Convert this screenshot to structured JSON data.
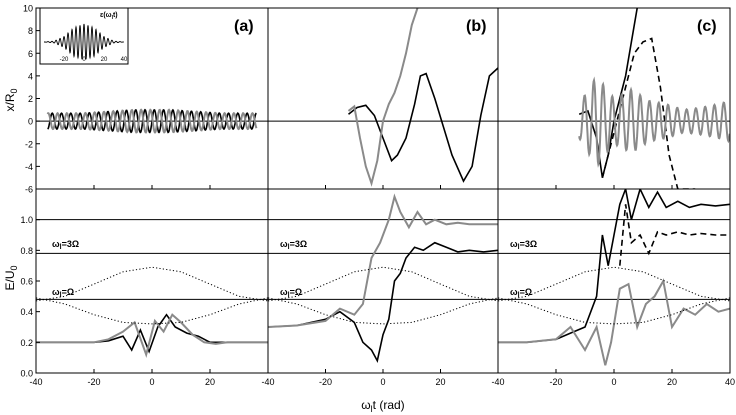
{
  "figure": {
    "panel_labels": [
      "(a)",
      "(b)",
      "(c)"
    ],
    "top_ylabel": "x/R",
    "top_ylabel_sub": "0",
    "bottom_ylabel": "E/U",
    "bottom_ylabel_sub": "0",
    "xlabel": "ω",
    "xlabel_sub": "l",
    "xlabel_rest": "t (rad)",
    "inset_label": "ε(ω",
    "inset_label_sub": "l",
    "inset_label_rest": "t)",
    "level_label_3": "ω",
    "level_label_3_sub": "l",
    "level_label_3_rest": "=3Ω",
    "level_label_1": "ω",
    "level_label_1_sub": "l",
    "level_label_1_rest": "=Ω",
    "colors": {
      "black_curve": "#000000",
      "gray_curve": "#8a8a8a",
      "axis": "#000000",
      "reference_line": "#000000"
    }
  },
  "chart_data": [
    {
      "type": "line",
      "panel": "(a)",
      "row": "top",
      "xlim": [
        -40,
        40
      ],
      "ylim": [
        -6,
        10
      ],
      "xticks": [
        -40,
        -20,
        0,
        20
      ],
      "yticks": [
        -6,
        -4,
        -2,
        0,
        2,
        4,
        6,
        8,
        10
      ],
      "reference_lines": [
        0
      ],
      "series": [
        {
          "color": "black",
          "style": "solid",
          "envelope": "oscillation",
          "x": [
            -36,
            -30,
            -24,
            -18,
            -12,
            -6,
            0,
            6,
            12,
            18,
            24,
            30,
            36
          ],
          "y": [
            0.7,
            0.7,
            0.7,
            0.8,
            0.9,
            1.0,
            1.0,
            1.0,
            0.9,
            0.8,
            0.7,
            0.7,
            0.7
          ]
        },
        {
          "color": "gray",
          "style": "solid",
          "envelope": "oscillation",
          "x": [
            -36,
            -30,
            -24,
            -18,
            -12,
            -6,
            0,
            6,
            12,
            18,
            24,
            30,
            36
          ],
          "y": [
            0.7,
            0.7,
            0.7,
            0.8,
            0.9,
            1.0,
            1.0,
            1.0,
            0.9,
            0.8,
            0.7,
            0.7,
            0.7
          ]
        }
      ]
    },
    {
      "type": "line",
      "panel": "(b)",
      "row": "top",
      "xlim": [
        -40,
        40
      ],
      "ylim": [
        -6,
        10
      ],
      "xticks": [
        -40,
        -20,
        0,
        20
      ],
      "reference_lines": [
        0
      ],
      "series": [
        {
          "color": "black",
          "style": "solid",
          "x": [
            -12,
            -9,
            -6,
            -3,
            0,
            3,
            5,
            8,
            11,
            13,
            15,
            18,
            21,
            24,
            28,
            31,
            34,
            37,
            40
          ],
          "y": [
            0.6,
            1.2,
            1.4,
            0.5,
            -1.5,
            -3.5,
            -3.0,
            -1.5,
            1.5,
            4.0,
            4.2,
            2.0,
            -0.5,
            -3.0,
            -5.3,
            -4.0,
            0.5,
            4.0,
            4.7
          ]
        },
        {
          "color": "gray",
          "style": "solid",
          "x": [
            -12,
            -10,
            -8,
            -6,
            -4,
            -2,
            0,
            2,
            4,
            6,
            8,
            10,
            12
          ],
          "y": [
            0.9,
            1.3,
            -1.5,
            -4.0,
            -5.5,
            -3.5,
            0.0,
            1.5,
            2.5,
            4.0,
            6.0,
            8.5,
            10.0
          ]
        }
      ]
    },
    {
      "type": "line",
      "panel": "(c)",
      "row": "top",
      "xlim": [
        -40,
        40
      ],
      "ylim": [
        -6,
        10
      ],
      "xticks": [
        -40,
        -20,
        0,
        20,
        40
      ],
      "reference_lines": [
        0
      ],
      "series": [
        {
          "color": "black",
          "style": "solid",
          "x": [
            -12,
            -9,
            -6,
            -4,
            -2,
            0,
            2,
            4,
            6,
            8
          ],
          "y": [
            0.6,
            0.9,
            -1.5,
            -5.0,
            -3.0,
            0.0,
            2.0,
            4.0,
            7.0,
            10.0
          ]
        },
        {
          "color": "black",
          "style": "dashed",
          "x": [
            -4,
            0,
            4,
            7,
            10,
            13,
            16,
            19,
            22,
            25,
            28
          ],
          "y": [
            -5.0,
            -1.0,
            3.0,
            6.0,
            7.0,
            7.3,
            3.0,
            -3.0,
            -6.0,
            -6.0,
            -6.0
          ]
        },
        {
          "color": "gray",
          "style": "solid",
          "envelope": "oscillation",
          "x": [
            -12,
            -6,
            0,
            6,
            12,
            18,
            24,
            30,
            36,
            40
          ],
          "y": [
            1.5,
            4.0,
            2.0,
            2.8,
            1.8,
            1.5,
            1.0,
            1.2,
            1.5,
            1.8
          ]
        }
      ]
    },
    {
      "type": "line",
      "panel": "(a)",
      "row": "bottom",
      "xlim": [
        -40,
        40
      ],
      "ylim": [
        0.0,
        1.2
      ],
      "xticks": [
        -40,
        -20,
        0,
        20
      ],
      "yticks": [
        0.0,
        0.2,
        0.4,
        0.6,
        0.8,
        1.0
      ],
      "reference_lines": [
        1.0,
        0.78,
        0.48
      ],
      "series": [
        {
          "color": "black",
          "style": "solid",
          "x": [
            -40,
            -30,
            -20,
            -15,
            -10,
            -7,
            -4,
            -1,
            2,
            5,
            8,
            12,
            16,
            20,
            25,
            30,
            40
          ],
          "y": [
            0.2,
            0.2,
            0.2,
            0.21,
            0.24,
            0.15,
            0.28,
            0.14,
            0.3,
            0.38,
            0.3,
            0.26,
            0.24,
            0.2,
            0.2,
            0.2,
            0.2
          ]
        },
        {
          "color": "gray",
          "style": "solid",
          "x": [
            -40,
            -30,
            -20,
            -15,
            -10,
            -6,
            -2,
            1,
            4,
            7,
            10,
            14,
            18,
            22,
            26,
            30,
            40
          ],
          "y": [
            0.2,
            0.2,
            0.2,
            0.22,
            0.27,
            0.33,
            0.12,
            0.34,
            0.27,
            0.38,
            0.33,
            0.25,
            0.2,
            0.19,
            0.2,
            0.2,
            0.2
          ]
        },
        {
          "color": "black",
          "style": "dotted",
          "x": [
            -40,
            -30,
            -20,
            -10,
            0,
            10,
            20,
            30,
            40
          ],
          "y": [
            0.47,
            0.5,
            0.58,
            0.66,
            0.69,
            0.66,
            0.58,
            0.5,
            0.47
          ]
        },
        {
          "color": "black",
          "style": "dotted",
          "x": [
            -40,
            -30,
            -20,
            -10,
            0,
            10,
            20,
            30,
            40
          ],
          "y": [
            0.49,
            0.45,
            0.38,
            0.33,
            0.32,
            0.33,
            0.38,
            0.45,
            0.49
          ]
        }
      ]
    },
    {
      "type": "line",
      "panel": "(b)",
      "row": "bottom",
      "xlim": [
        -40,
        40
      ],
      "ylim": [
        0.0,
        1.2
      ],
      "xticks": [
        -40,
        -20,
        0,
        20
      ],
      "reference_lines": [
        1.0,
        0.78,
        0.48
      ],
      "series": [
        {
          "color": "black",
          "style": "solid",
          "x": [
            -40,
            -30,
            -20,
            -15,
            -10,
            -7,
            -4,
            -2,
            0,
            2,
            4,
            6,
            8,
            11,
            14,
            18,
            22,
            26,
            30,
            35,
            40
          ],
          "y": [
            0.3,
            0.31,
            0.35,
            0.4,
            0.33,
            0.2,
            0.15,
            0.08,
            0.25,
            0.35,
            0.6,
            0.65,
            0.75,
            0.82,
            0.8,
            0.85,
            0.82,
            0.79,
            0.8,
            0.79,
            0.8
          ]
        },
        {
          "color": "gray",
          "style": "solid",
          "x": [
            -40,
            -30,
            -20,
            -15,
            -10,
            -7,
            -4,
            -1,
            2,
            4,
            6,
            9,
            12,
            15,
            18,
            22,
            26,
            30,
            35,
            40
          ],
          "y": [
            0.3,
            0.31,
            0.34,
            0.42,
            0.38,
            0.45,
            0.75,
            0.85,
            1.0,
            1.15,
            1.05,
            0.95,
            1.05,
            0.97,
            1.0,
            0.97,
            0.98,
            0.97,
            0.97,
            0.97
          ]
        },
        {
          "color": "black",
          "style": "dotted",
          "x": [
            -40,
            -30,
            -20,
            -10,
            0,
            10,
            20,
            30,
            40
          ],
          "y": [
            0.47,
            0.5,
            0.58,
            0.66,
            0.69,
            0.66,
            0.58,
            0.5,
            0.47
          ]
        },
        {
          "color": "black",
          "style": "dotted",
          "x": [
            -40,
            -30,
            -20,
            -10,
            0,
            10,
            20,
            30,
            40
          ],
          "y": [
            0.49,
            0.45,
            0.38,
            0.33,
            0.32,
            0.33,
            0.38,
            0.45,
            0.49
          ]
        }
      ]
    },
    {
      "type": "line",
      "panel": "(c)",
      "row": "bottom",
      "xlim": [
        -40,
        40
      ],
      "ylim": [
        0.0,
        1.2
      ],
      "xticks": [
        -40,
        -20,
        0,
        20,
        40
      ],
      "reference_lines": [
        1.0,
        0.78,
        0.48
      ],
      "series": [
        {
          "color": "black",
          "style": "solid",
          "x": [
            -40,
            -30,
            -20,
            -15,
            -10,
            -6,
            -4,
            -2,
            0,
            2,
            4,
            6,
            9,
            12,
            15,
            18,
            22,
            26,
            30,
            35,
            40
          ],
          "y": [
            0.2,
            0.2,
            0.22,
            0.26,
            0.3,
            0.5,
            0.9,
            0.7,
            0.9,
            1.1,
            1.2,
            1.0,
            1.2,
            1.08,
            1.18,
            1.08,
            1.12,
            1.08,
            1.1,
            1.09,
            1.1
          ]
        },
        {
          "color": "black",
          "style": "dashed",
          "x": [
            2,
            4,
            6,
            9,
            12,
            15,
            18,
            22,
            26,
            30,
            35,
            40
          ],
          "y": [
            0.7,
            1.1,
            0.85,
            0.9,
            0.78,
            0.92,
            0.9,
            0.92,
            0.9,
            0.91,
            0.9,
            0.9
          ]
        },
        {
          "color": "gray",
          "style": "solid",
          "x": [
            -40,
            -30,
            -20,
            -15,
            -10,
            -6,
            -3,
            -1,
            2,
            5,
            8,
            11,
            14,
            17,
            20,
            24,
            28,
            32,
            36,
            40
          ],
          "y": [
            0.2,
            0.2,
            0.22,
            0.3,
            0.15,
            0.3,
            0.05,
            0.2,
            0.55,
            0.58,
            0.3,
            0.45,
            0.5,
            0.6,
            0.3,
            0.42,
            0.38,
            0.45,
            0.4,
            0.42
          ]
        },
        {
          "color": "black",
          "style": "dotted",
          "x": [
            -40,
            -30,
            -20,
            -10,
            0,
            10,
            20,
            30,
            40
          ],
          "y": [
            0.47,
            0.5,
            0.58,
            0.66,
            0.69,
            0.66,
            0.58,
            0.5,
            0.47
          ]
        },
        {
          "color": "black",
          "style": "dotted",
          "x": [
            -40,
            -30,
            -20,
            -10,
            0,
            10,
            20,
            30,
            40
          ],
          "y": [
            0.49,
            0.45,
            0.38,
            0.33,
            0.32,
            0.33,
            0.38,
            0.45,
            0.49
          ]
        }
      ]
    },
    {
      "type": "line",
      "panel": "inset",
      "title": "ε(ωlt)",
      "xlim": [
        -40,
        40
      ],
      "xticks": [
        -20,
        0,
        20,
        40
      ],
      "series": [
        {
          "color": "black",
          "style": "solid",
          "envelope": "gaussian-pulse",
          "x": [
            -40,
            -30,
            -20,
            -10,
            0,
            10,
            20,
            30,
            40
          ],
          "y": [
            0.0,
            0.05,
            0.3,
            0.8,
            1.0,
            0.8,
            0.3,
            0.05,
            0.0
          ]
        }
      ]
    }
  ]
}
